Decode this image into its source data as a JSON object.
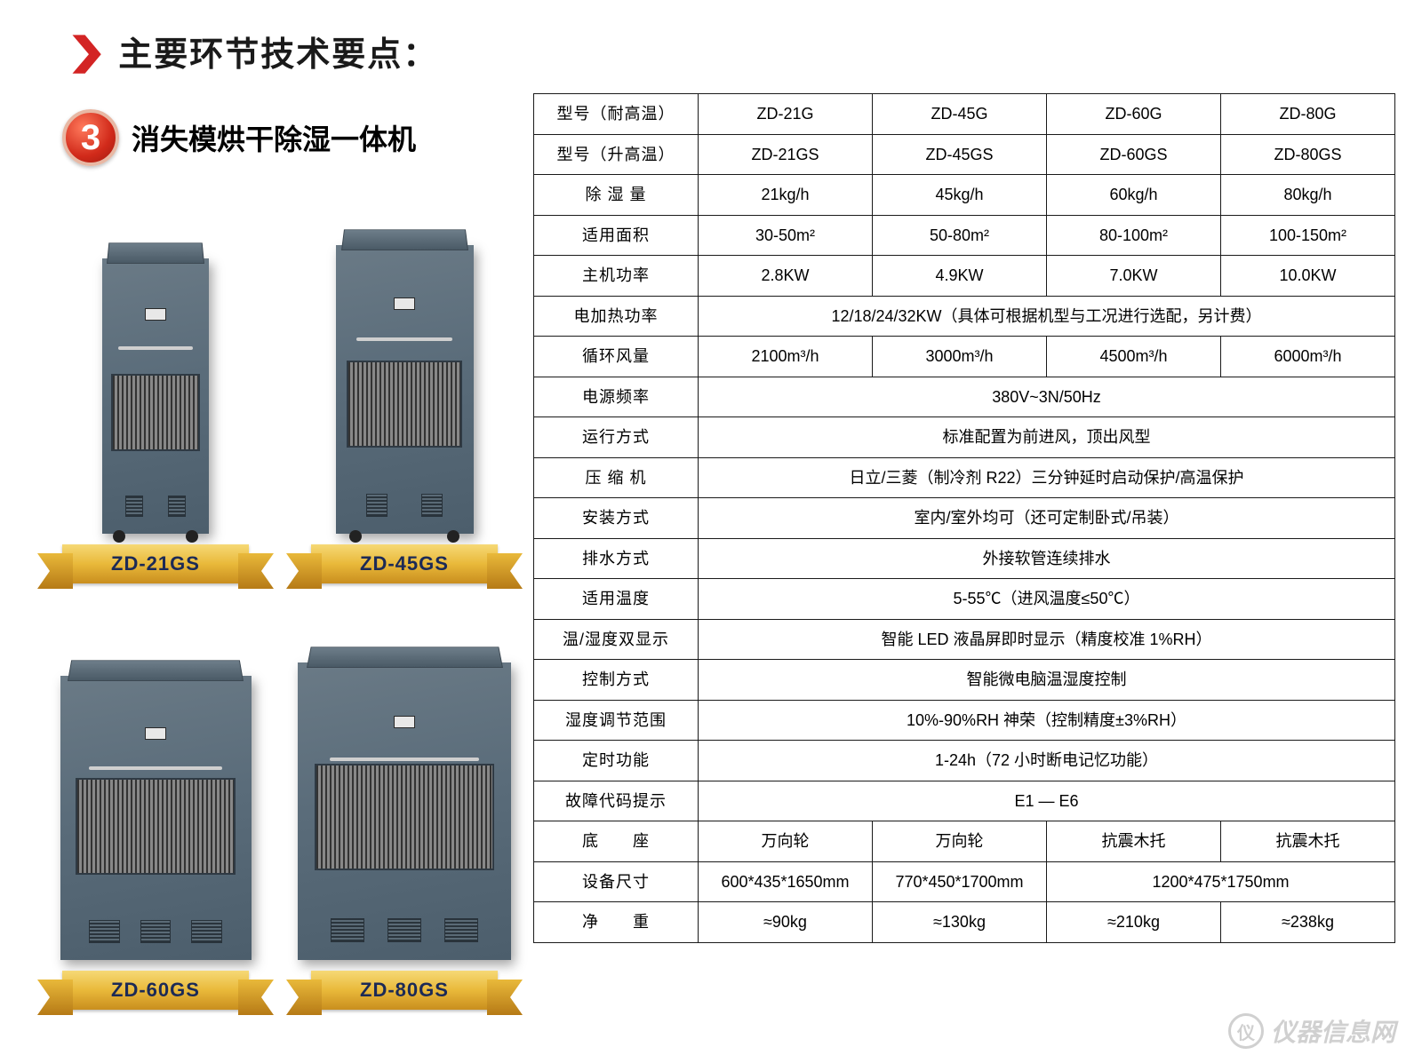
{
  "header": {
    "title": "主要环节技术要点："
  },
  "section": {
    "number": "3",
    "subtitle": "消失模烘干除湿一体机"
  },
  "products": [
    {
      "label": "ZD-21GS"
    },
    {
      "label": "ZD-45GS"
    },
    {
      "label": "ZD-60GS"
    },
    {
      "label": "ZD-80GS"
    }
  ],
  "table": {
    "rows": [
      {
        "label": "型号（耐高温）",
        "cells": [
          "ZD-21G",
          "ZD-45G",
          "ZD-60G",
          "ZD-80G"
        ]
      },
      {
        "label": "型号（升高温）",
        "cells": [
          "ZD-21GS",
          "ZD-45GS",
          "ZD-60GS",
          "ZD-80GS"
        ]
      },
      {
        "label": "除 湿 量",
        "cells": [
          "21kg/h",
          "45kg/h",
          "60kg/h",
          "80kg/h"
        ]
      },
      {
        "label": "适用面积",
        "cells": [
          "30-50m²",
          "50-80m²",
          "80-100m²",
          "100-150m²"
        ]
      },
      {
        "label": "主机功率",
        "cells": [
          "2.8KW",
          "4.9KW",
          "7.0KW",
          "10.0KW"
        ]
      },
      {
        "label": "电加热功率",
        "span": "12/18/24/32KW（具体可根据机型与工况进行选配，另计费）"
      },
      {
        "label": "循环风量",
        "cells": [
          "2100m³/h",
          "3000m³/h",
          "4500m³/h",
          "6000m³/h"
        ]
      },
      {
        "label": "电源频率",
        "span": "380V~3N/50Hz"
      },
      {
        "label": "运行方式",
        "span": "标准配置为前进风，顶出风型"
      },
      {
        "label": "压 缩 机",
        "span": "日立/三菱（制冷剂 R22）三分钟延时启动保护/高温保护"
      },
      {
        "label": "安装方式",
        "span": "室内/室外均可（还可定制卧式/吊装）"
      },
      {
        "label": "排水方式",
        "span": "外接软管连续排水"
      },
      {
        "label": "适用温度",
        "span": "5-55℃（进风温度≤50℃）"
      },
      {
        "label": "温/湿度双显示",
        "span": "智能 LED 液晶屏即时显示（精度校准 1%RH）"
      },
      {
        "label": "控制方式",
        "span": "智能微电脑温湿度控制"
      },
      {
        "label": "湿度调节范围",
        "span": "10%-90%RH 神荣（控制精度±3%RH）"
      },
      {
        "label": "定时功能",
        "span": "1-24h（72 小时断电记忆功能）"
      },
      {
        "label": "故障代码提示",
        "span": "E1 — E6"
      },
      {
        "label": "底　　座",
        "cells": [
          "万向轮",
          "万向轮",
          "抗震木托",
          "抗震木托"
        ]
      },
      {
        "label": "设备尺寸",
        "mixed": [
          {
            "text": "600*435*1650mm",
            "colspan": 1
          },
          {
            "text": "770*450*1700mm",
            "colspan": 1
          },
          {
            "text": "1200*475*1750mm",
            "colspan": 2
          }
        ]
      },
      {
        "label": "净　　重",
        "cells": [
          "≈90kg",
          "≈130kg",
          "≈210kg",
          "≈238kg"
        ]
      }
    ]
  },
  "watermark": "仪器信息网",
  "colors": {
    "accent_red": "#d32424",
    "ribbon_gold": "#e9b93a",
    "ribbon_text": "#1c2a56",
    "unit_body": "#5a6c7a",
    "border": "#1a1a1a"
  }
}
